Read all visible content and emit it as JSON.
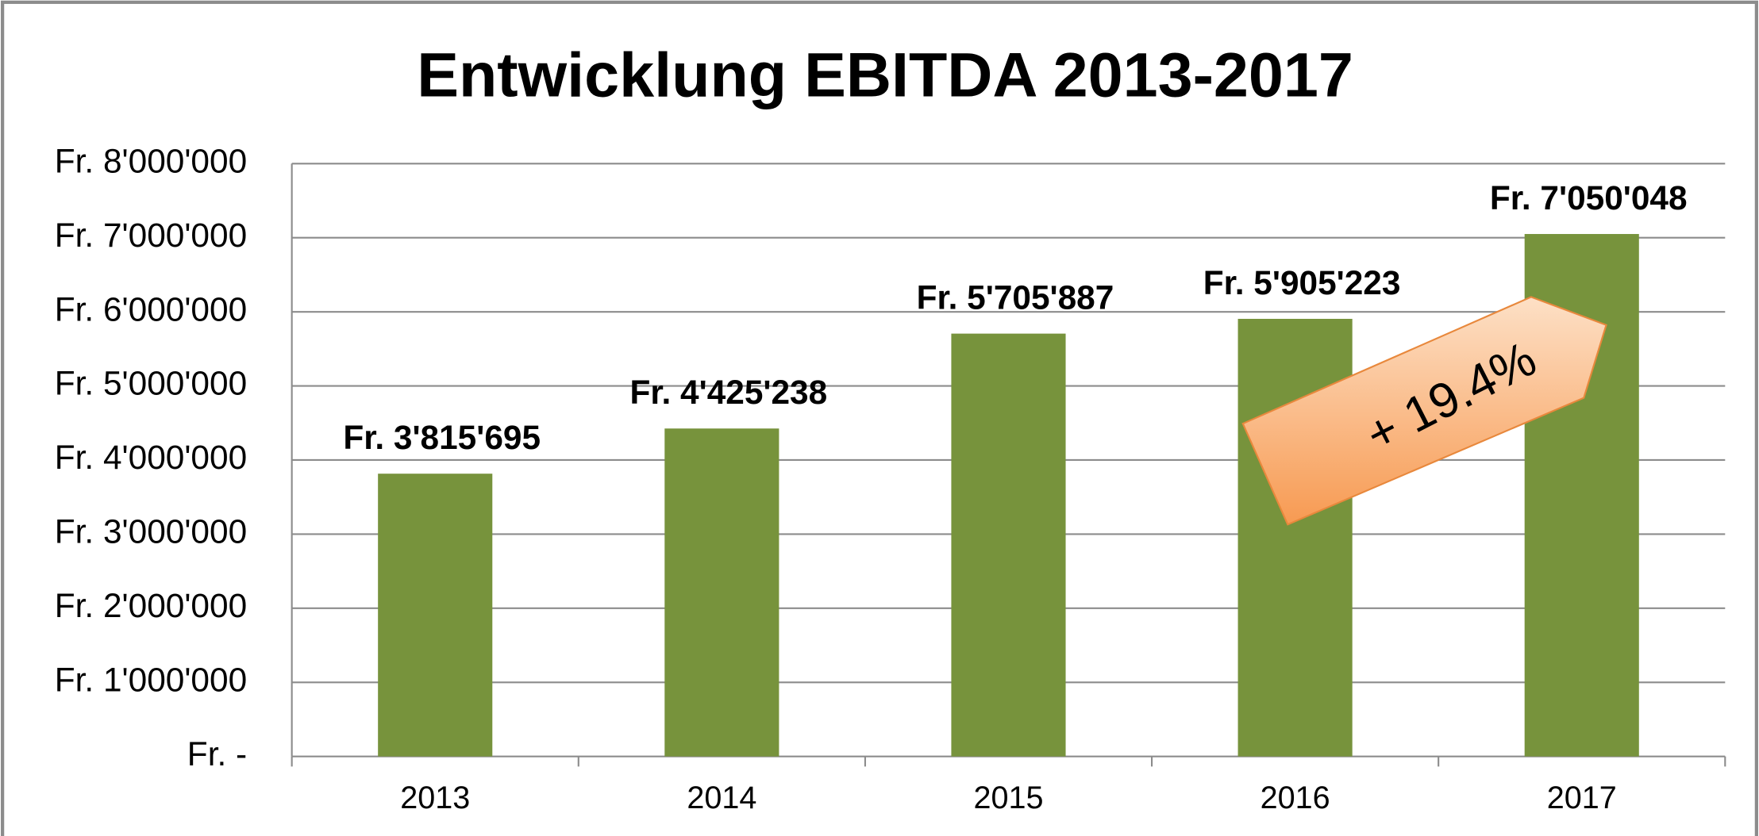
{
  "chart_data": {
    "type": "bar",
    "title": "Entwicklung EBITDA 2013-2017",
    "categories": [
      "2013",
      "2014",
      "2015",
      "2016",
      "2017"
    ],
    "values": [
      3815695,
      4425238,
      5705887,
      5905223,
      7050048
    ],
    "value_labels": [
      "Fr. 3'815'695",
      "Fr. 4'425'238",
      "Fr. 5'705'887",
      "Fr. 5'905'223",
      "Fr. 7'050'048"
    ],
    "color": "#77933c",
    "ylim": [
      0,
      8000000
    ],
    "yticks": [
      {
        "value": 0,
        "label": "Fr. -"
      },
      {
        "value": 1000000,
        "label": "Fr. 1'000'000"
      },
      {
        "value": 2000000,
        "label": "Fr. 2'000'000"
      },
      {
        "value": 3000000,
        "label": "Fr. 3'000'000"
      },
      {
        "value": 4000000,
        "label": "Fr. 4'000'000"
      },
      {
        "value": 5000000,
        "label": "Fr. 5'000'000"
      },
      {
        "value": 6000000,
        "label": "Fr. 6'000'000"
      },
      {
        "value": 7000000,
        "label": "Fr. 7'000'000"
      },
      {
        "value": 8000000,
        "label": "Fr. 8'000'000"
      }
    ],
    "grid": true,
    "annotation": "+ 19.4%"
  }
}
